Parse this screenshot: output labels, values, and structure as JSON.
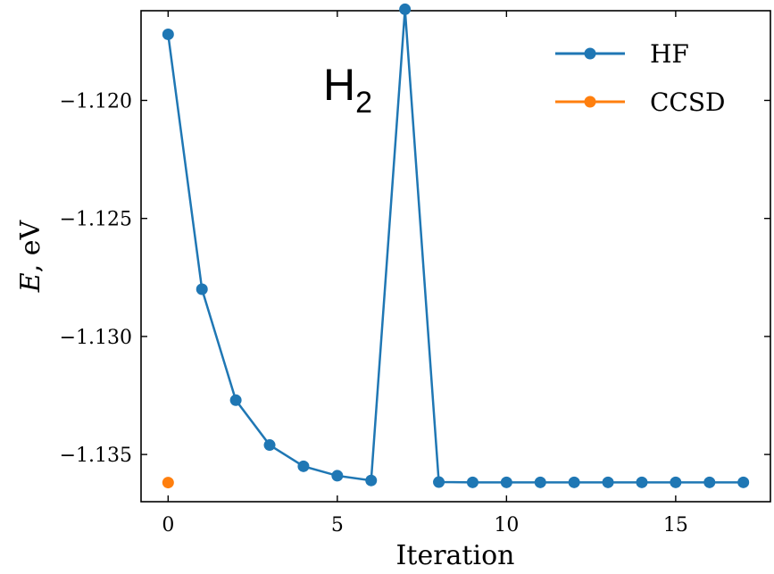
{
  "chart_data": {
    "type": "line",
    "xlabel": "Iteration",
    "ylabel_italic": "E",
    "ylabel_rest": ", eV",
    "xlim": [
      -0.8,
      17.8
    ],
    "ylim": [
      -1.137,
      -1.1162
    ],
    "xticks": [
      0,
      5,
      10,
      15
    ],
    "xtick_labels": [
      "0",
      "5",
      "10",
      "15"
    ],
    "yticks": [
      -1.12,
      -1.125,
      -1.13,
      -1.135
    ],
    "ytick_labels": [
      "−1.120",
      "−1.125",
      "−1.130",
      "−1.135"
    ],
    "annotation": {
      "main": "H",
      "sub": "2"
    },
    "legend_position": "top-right",
    "series": [
      {
        "name": "HF",
        "color": "#1f77b4",
        "x": [
          0,
          1,
          2,
          3,
          4,
          5,
          6,
          7,
          8,
          9,
          10,
          11,
          12,
          13,
          14,
          15,
          16,
          17
        ],
        "y": [
          -1.1172,
          -1.128,
          -1.1327,
          -1.1346,
          -1.1355,
          -1.1359,
          -1.1361,
          -1.11614,
          -1.13617,
          -1.13618,
          -1.13618,
          -1.13618,
          -1.13618,
          -1.13618,
          -1.13618,
          -1.13618,
          -1.13618,
          -1.13618
        ]
      },
      {
        "name": "CCSD",
        "color": "#ff7f0e",
        "x": [
          0
        ],
        "y": [
          -1.13619
        ]
      }
    ]
  }
}
